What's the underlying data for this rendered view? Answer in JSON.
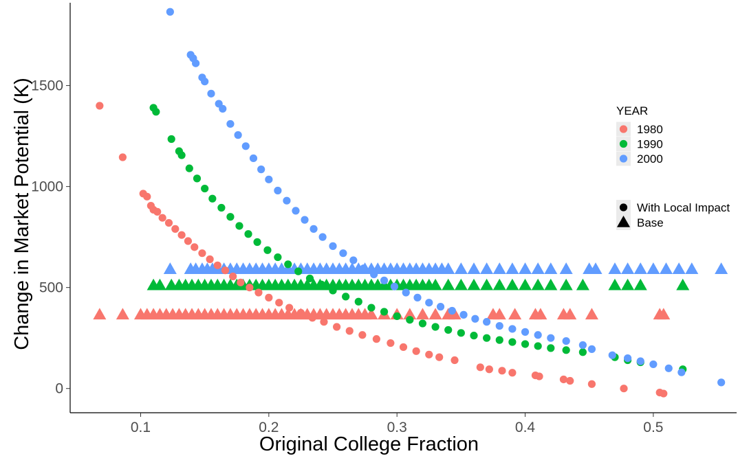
{
  "chart_data": {
    "type": "scatter",
    "xlabel": "Original College Fraction",
    "ylabel": "Change in Market Potential (K)",
    "xlim": [
      0.045,
      0.565
    ],
    "ylim": [
      -120,
      1910
    ],
    "x_ticks": [
      0.1,
      0.2,
      0.3,
      0.4,
      0.5
    ],
    "x_tick_labels": [
      "0.1",
      "0.2",
      "0.3",
      "0.4",
      "0.5"
    ],
    "y_ticks": [
      0,
      500,
      1000,
      1500
    ],
    "y_tick_labels": [
      "0",
      "500",
      "1000",
      "1500"
    ],
    "grid": false,
    "legend": {
      "position": "right",
      "color_title": "YEAR",
      "colors": [
        {
          "label": "1980",
          "color": "#F8766D"
        },
        {
          "label": "1990",
          "color": "#00BA38"
        },
        {
          "label": "2000",
          "color": "#619CFF"
        }
      ],
      "shapes": [
        {
          "label": "With Local Impact",
          "shape": "circle"
        },
        {
          "label": "Base",
          "shape": "triangle"
        }
      ]
    },
    "series": [
      {
        "year": "1980",
        "shape": "circle",
        "color": "#F8766D",
        "x": [
          0.068,
          0.086,
          0.102,
          0.105,
          0.108,
          0.11,
          0.113,
          0.117,
          0.122,
          0.127,
          0.132,
          0.137,
          0.142,
          0.148,
          0.154,
          0.16,
          0.166,
          0.172,
          0.178,
          0.185,
          0.192,
          0.2,
          0.208,
          0.216,
          0.225,
          0.234,
          0.243,
          0.253,
          0.263,
          0.273,
          0.284,
          0.295,
          0.305,
          0.315,
          0.325,
          0.333,
          0.345,
          0.365,
          0.372,
          0.382,
          0.39,
          0.408,
          0.411,
          0.43,
          0.435,
          0.452,
          0.477,
          0.505,
          0.508
        ],
        "y": [
          1400,
          1145,
          965,
          950,
          905,
          885,
          875,
          845,
          820,
          790,
          760,
          730,
          700,
          670,
          640,
          610,
          585,
          555,
          525,
          500,
          475,
          450,
          425,
          400,
          375,
          350,
          330,
          305,
          285,
          265,
          245,
          225,
          205,
          185,
          168,
          155,
          140,
          105,
          95,
          88,
          78,
          65,
          60,
          45,
          38,
          22,
          0,
          -20,
          -25
        ]
      },
      {
        "year": "1980",
        "shape": "triangle",
        "color": "#F8766D",
        "x": [
          0.068,
          0.086,
          0.1,
          0.105,
          0.11,
          0.115,
          0.12,
          0.125,
          0.13,
          0.135,
          0.14,
          0.145,
          0.15,
          0.155,
          0.16,
          0.165,
          0.17,
          0.175,
          0.18,
          0.185,
          0.19,
          0.195,
          0.2,
          0.205,
          0.21,
          0.215,
          0.22,
          0.225,
          0.23,
          0.235,
          0.24,
          0.245,
          0.25,
          0.255,
          0.26,
          0.265,
          0.27,
          0.275,
          0.28,
          0.29,
          0.3,
          0.31,
          0.32,
          0.33,
          0.34,
          0.345,
          0.375,
          0.38,
          0.392,
          0.408,
          0.412,
          0.43,
          0.435,
          0.452,
          0.505,
          0.508
        ],
        "y": [
          365,
          365,
          365,
          365,
          365,
          365,
          365,
          365,
          365,
          365,
          365,
          365,
          365,
          365,
          365,
          365,
          365,
          365,
          365,
          365,
          365,
          365,
          365,
          365,
          365,
          365,
          365,
          365,
          365,
          365,
          365,
          365,
          365,
          365,
          365,
          365,
          365,
          365,
          365,
          365,
          365,
          365,
          365,
          365,
          365,
          365,
          365,
          365,
          365,
          365,
          365,
          365,
          365,
          365,
          365,
          365
        ]
      },
      {
        "year": "1990",
        "shape": "circle",
        "color": "#00BA38",
        "x": [
          0.11,
          0.112,
          0.124,
          0.13,
          0.132,
          0.138,
          0.144,
          0.15,
          0.156,
          0.163,
          0.17,
          0.177,
          0.184,
          0.191,
          0.199,
          0.207,
          0.215,
          0.223,
          0.232,
          0.241,
          0.25,
          0.26,
          0.27,
          0.28,
          0.29,
          0.3,
          0.31,
          0.32,
          0.33,
          0.34,
          0.35,
          0.36,
          0.37,
          0.38,
          0.39,
          0.4,
          0.41,
          0.42,
          0.432,
          0.445,
          0.47,
          0.48,
          0.49,
          0.523
        ],
        "y": [
          1390,
          1370,
          1235,
          1175,
          1155,
          1090,
          1040,
          990,
          940,
          895,
          850,
          805,
          765,
          725,
          685,
          650,
          615,
          580,
          545,
          515,
          485,
          455,
          430,
          400,
          380,
          358,
          340,
          322,
          305,
          290,
          275,
          262,
          250,
          240,
          230,
          220,
          210,
          200,
          190,
          180,
          155,
          140,
          130,
          95
        ]
      },
      {
        "year": "1990",
        "shape": "triangle",
        "color": "#00BA38",
        "x": [
          0.11,
          0.115,
          0.124,
          0.13,
          0.135,
          0.14,
          0.145,
          0.15,
          0.155,
          0.16,
          0.165,
          0.17,
          0.175,
          0.18,
          0.185,
          0.19,
          0.195,
          0.2,
          0.205,
          0.21,
          0.215,
          0.22,
          0.225,
          0.23,
          0.235,
          0.24,
          0.245,
          0.25,
          0.255,
          0.26,
          0.265,
          0.27,
          0.275,
          0.28,
          0.285,
          0.29,
          0.295,
          0.3,
          0.305,
          0.31,
          0.315,
          0.32,
          0.325,
          0.33,
          0.34,
          0.35,
          0.36,
          0.37,
          0.38,
          0.39,
          0.4,
          0.41,
          0.42,
          0.432,
          0.445,
          0.47,
          0.48,
          0.49,
          0.523
        ],
        "y": [
          510,
          510,
          510,
          510,
          510,
          510,
          510,
          510,
          510,
          510,
          510,
          510,
          510,
          510,
          510,
          510,
          510,
          510,
          510,
          510,
          510,
          510,
          510,
          510,
          510,
          510,
          510,
          510,
          510,
          510,
          510,
          510,
          510,
          510,
          510,
          510,
          510,
          510,
          510,
          510,
          510,
          510,
          510,
          510,
          510,
          510,
          510,
          510,
          510,
          510,
          510,
          510,
          510,
          510,
          510,
          510,
          510,
          510,
          510
        ]
      },
      {
        "year": "2000",
        "shape": "circle",
        "color": "#619CFF",
        "x": [
          0.123,
          0.139,
          0.141,
          0.143,
          0.148,
          0.15,
          0.155,
          0.161,
          0.164,
          0.17,
          0.176,
          0.182,
          0.188,
          0.194,
          0.2,
          0.207,
          0.214,
          0.221,
          0.228,
          0.235,
          0.242,
          0.25,
          0.258,
          0.266,
          0.274,
          0.282,
          0.29,
          0.298,
          0.307,
          0.316,
          0.325,
          0.334,
          0.343,
          0.352,
          0.361,
          0.37,
          0.38,
          0.39,
          0.4,
          0.41,
          0.42,
          0.432,
          0.445,
          0.452,
          0.468,
          0.48,
          0.49,
          0.5,
          0.512,
          0.522,
          0.553
        ],
        "y": [
          1865,
          1652,
          1635,
          1610,
          1540,
          1520,
          1460,
          1410,
          1385,
          1310,
          1255,
          1200,
          1140,
          1085,
          1035,
          980,
          930,
          880,
          835,
          790,
          750,
          705,
          670,
          635,
          595,
          565,
          535,
          505,
          475,
          450,
          425,
          405,
          385,
          365,
          345,
          330,
          310,
          295,
          280,
          265,
          250,
          235,
          215,
          195,
          165,
          150,
          135,
          120,
          100,
          80,
          30
        ]
      },
      {
        "year": "2000",
        "shape": "triangle",
        "color": "#619CFF",
        "x": [
          0.123,
          0.139,
          0.143,
          0.148,
          0.152,
          0.156,
          0.16,
          0.165,
          0.17,
          0.175,
          0.18,
          0.185,
          0.19,
          0.195,
          0.2,
          0.205,
          0.21,
          0.215,
          0.22,
          0.225,
          0.23,
          0.235,
          0.24,
          0.245,
          0.25,
          0.255,
          0.26,
          0.265,
          0.27,
          0.275,
          0.28,
          0.285,
          0.29,
          0.295,
          0.3,
          0.305,
          0.31,
          0.315,
          0.32,
          0.325,
          0.33,
          0.335,
          0.34,
          0.35,
          0.36,
          0.37,
          0.38,
          0.39,
          0.4,
          0.41,
          0.42,
          0.432,
          0.45,
          0.455,
          0.47,
          0.48,
          0.49,
          0.5,
          0.51,
          0.52,
          0.53,
          0.553
        ],
        "y": [
          590,
          590,
          590,
          590,
          590,
          590,
          590,
          590,
          590,
          590,
          590,
          590,
          590,
          590,
          590,
          590,
          590,
          590,
          590,
          590,
          590,
          590,
          590,
          590,
          590,
          590,
          590,
          590,
          590,
          590,
          590,
          590,
          590,
          590,
          590,
          590,
          590,
          590,
          590,
          590,
          590,
          590,
          590,
          590,
          590,
          590,
          590,
          590,
          590,
          590,
          590,
          590,
          590,
          590,
          590,
          590,
          590,
          590,
          590,
          590,
          590,
          590
        ]
      }
    ]
  }
}
